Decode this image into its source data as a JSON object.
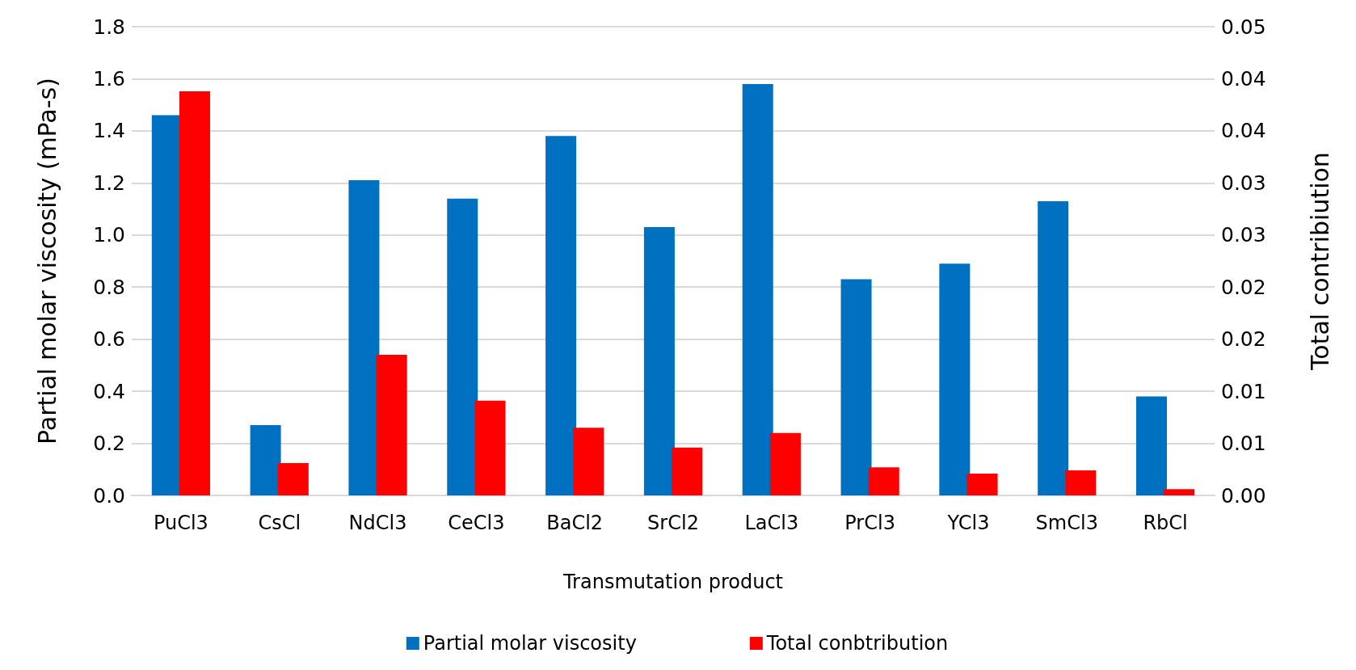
{
  "chart_data": {
    "type": "bar",
    "xlabel": "Transmutation product",
    "ylabel": "Partial molar viscosity (mPa-s)",
    "y2label": "Total contribiution",
    "categories": [
      "PuCl3",
      "CsCl",
      "NdCl3",
      "CeCl3",
      "BaCl2",
      "SrCl2",
      "LaCl3",
      "PrCl3",
      "YCl3",
      "SmCl3",
      "RbCl"
    ],
    "series": [
      {
        "name": "Partial molar viscosity",
        "color": "#0070c0",
        "values": [
          1.46,
          0.27,
          1.21,
          1.14,
          1.38,
          1.03,
          1.58,
          0.83,
          0.89,
          1.13,
          0.38
        ]
      },
      {
        "name": "Total conbtribution",
        "color": "#ff0000",
        "axis": "y2",
        "values": [
          0.0388,
          0.0031,
          0.0135,
          0.0091,
          0.0065,
          0.0046,
          0.006,
          0.0027,
          0.0021,
          0.0024,
          0.0006
        ]
      }
    ],
    "ylim": [
      0,
      1.8
    ],
    "yticks": [
      {
        "value": 0,
        "label": "0.0"
      },
      {
        "value": 0.2,
        "label": "0.2"
      },
      {
        "value": 0.4,
        "label": "0.4"
      },
      {
        "value": 0.6,
        "label": "0.6"
      },
      {
        "value": 0.8,
        "label": "0.8"
      },
      {
        "value": 1,
        "label": "1.0"
      },
      {
        "value": 1.2,
        "label": "1.2"
      },
      {
        "value": 1.4,
        "label": "1.4"
      },
      {
        "value": 1.6,
        "label": "1.6"
      },
      {
        "value": 1.8,
        "label": "1.8"
      }
    ],
    "y2lim": [
      0,
      0.045
    ],
    "y2ticks": [
      {
        "value": 0,
        "label": "0.00"
      },
      {
        "value": 0.005,
        "label": "0.01"
      },
      {
        "value": 0.01,
        "label": "0.01"
      },
      {
        "value": 0.015,
        "label": "0.02"
      },
      {
        "value": 0.02,
        "label": "0.02"
      },
      {
        "value": 0.025,
        "label": "0.03"
      },
      {
        "value": 0.03,
        "label": "0.03"
      },
      {
        "value": 0.035,
        "label": "0.04"
      },
      {
        "value": 0.04,
        "label": "0.04"
      },
      {
        "value": 0.045,
        "label": "0.05"
      }
    ],
    "grid": "y",
    "legend": "bottom"
  }
}
